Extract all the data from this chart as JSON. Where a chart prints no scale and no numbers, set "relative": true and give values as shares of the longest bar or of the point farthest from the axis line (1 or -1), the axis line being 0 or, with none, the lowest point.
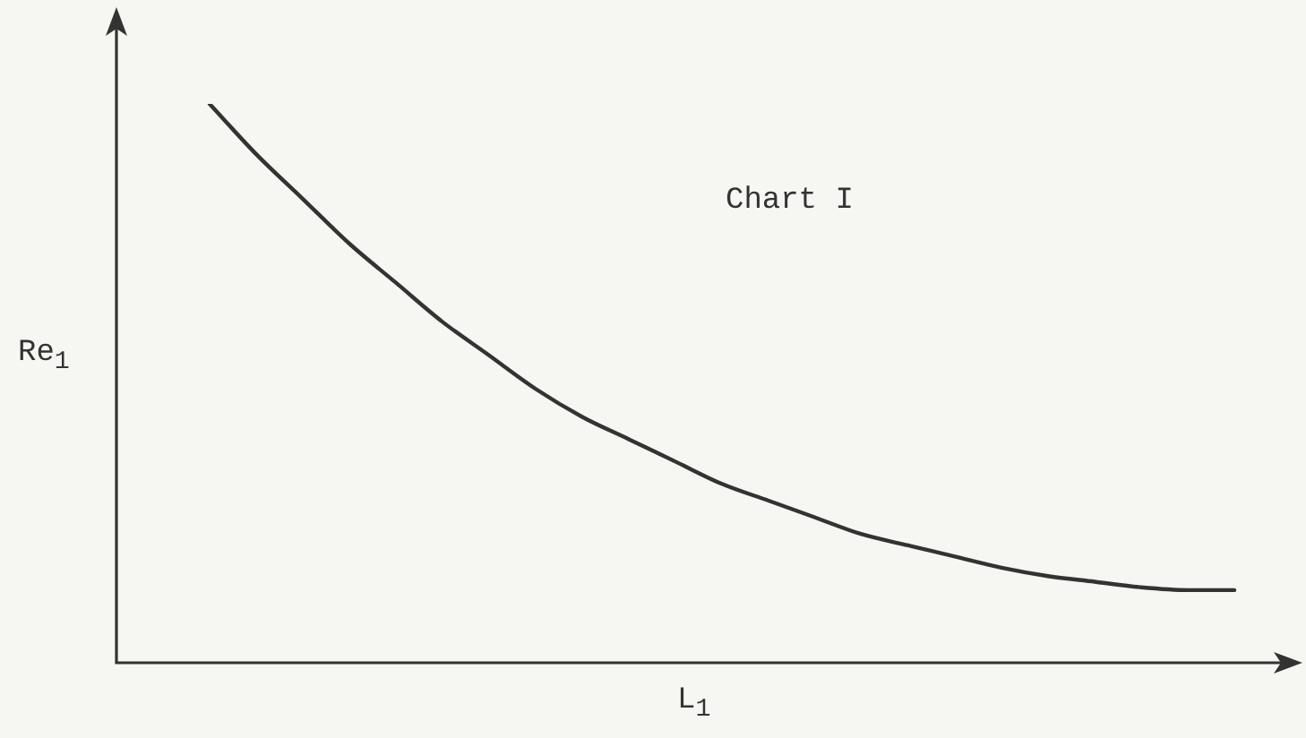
{
  "chart_data": {
    "type": "line",
    "relative": true,
    "xlabel": "L$_{1}$",
    "ylabel": "Re$_{1}$",
    "annotations": [
      "Chart I"
    ],
    "categories": [
      null,
      null,
      null,
      null,
      null,
      null,
      null,
      null,
      null,
      null,
      null,
      null,
      null,
      null,
      null,
      null,
      null,
      null,
      null,
      null,
      null,
      null,
      null,
      null,
      null,
      null
    ],
    "series": [
      {
        "color": "#333333",
        "values": [
          null,
          null,
          1,
          0.91,
          0.83,
          0.75,
          0.68,
          0.61,
          0.55,
          0.49,
          0.44,
          0.4,
          0.36,
          0.32,
          0.29,
          0.26,
          0.23,
          0.21,
          0.19,
          0.17,
          0.155,
          0.145,
          0.135,
          0.13,
          0.13,
          null
        ]
      }
    ],
    "marker": "none",
    "grid": false,
    "legend": false
  }
}
